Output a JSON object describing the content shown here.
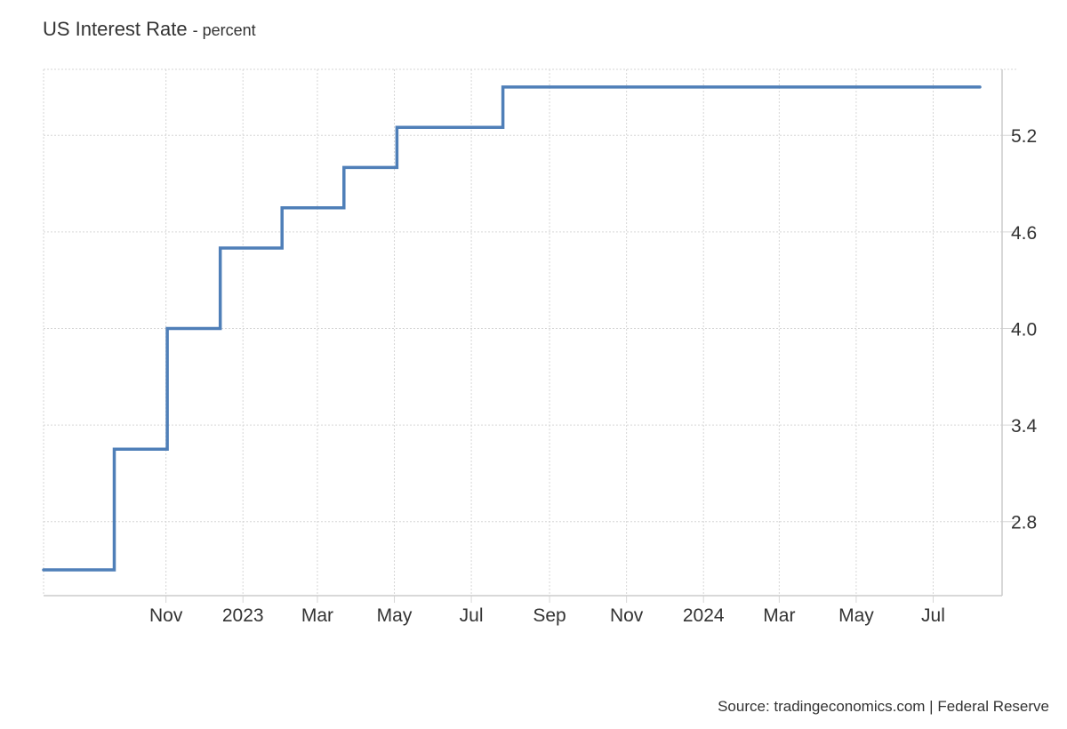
{
  "title": "US Interest Rate",
  "subtitle": "- percent",
  "source": "Source: tradingeconomics.com | Federal Reserve",
  "colors": {
    "line": "#4f7fb8",
    "grid": "#d6d6d6",
    "axis": "#cccccc",
    "text": "#333333"
  },
  "chart_data": {
    "type": "line",
    "step": true,
    "title": "US Interest Rate",
    "subtitle": "percent",
    "xlabel": "",
    "ylabel": "",
    "x_range": [
      "2022-07-27",
      "2024-08-07"
    ],
    "ylim": [
      2.34,
      5.61
    ],
    "grid": true,
    "y_axis_position": "right",
    "y_ticks": [
      2.8,
      3.4,
      4.0,
      4.6,
      5.2
    ],
    "y_tick_labels": [
      "2.8",
      "3.4",
      "4.0",
      "4.6",
      "5.2"
    ],
    "x_ticks": [
      {
        "date": "2022-11-01",
        "label": "Nov"
      },
      {
        "date": "2023-01-01",
        "label": "2023"
      },
      {
        "date": "2023-03-01",
        "label": "Mar"
      },
      {
        "date": "2023-05-01",
        "label": "May"
      },
      {
        "date": "2023-07-01",
        "label": "Jul"
      },
      {
        "date": "2023-09-01",
        "label": "Sep"
      },
      {
        "date": "2023-11-01",
        "label": "Nov"
      },
      {
        "date": "2024-01-01",
        "label": "2024"
      },
      {
        "date": "2024-03-01",
        "label": "Mar"
      },
      {
        "date": "2024-05-01",
        "label": "May"
      },
      {
        "date": "2024-07-01",
        "label": "Jul"
      }
    ],
    "series": [
      {
        "values": [
          {
            "date": "2022-07-27",
            "value": 2.5
          },
          {
            "date": "2022-09-21",
            "value": 3.25
          },
          {
            "date": "2022-11-02",
            "value": 4.0
          },
          {
            "date": "2022-12-14",
            "value": 4.5
          },
          {
            "date": "2023-02-01",
            "value": 4.75
          },
          {
            "date": "2023-03-22",
            "value": 5.0
          },
          {
            "date": "2023-05-03",
            "value": 5.25
          },
          {
            "date": "2023-07-26",
            "value": 5.5
          },
          {
            "date": "2024-08-07",
            "value": 5.5
          }
        ]
      }
    ]
  }
}
